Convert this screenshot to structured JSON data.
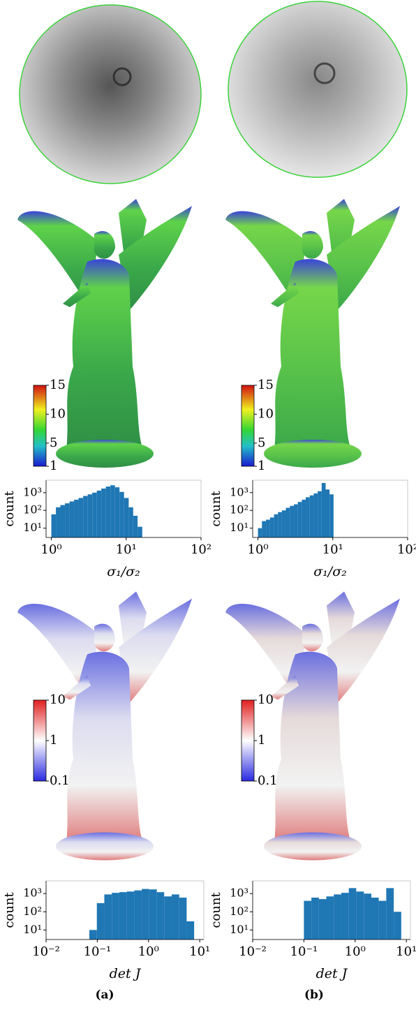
{
  "panels": [
    {
      "label": "(a)"
    },
    {
      "label": "(b)"
    }
  ],
  "colorbars": [
    {
      "lim": [
        1,
        15
      ],
      "log": false,
      "ticks": [
        1,
        5,
        10,
        15
      ]
    },
    {
      "lim": [
        1,
        15
      ],
      "log": false,
      "ticks": [
        1,
        5,
        10,
        15
      ]
    },
    {
      "lim": [
        0.1,
        10
      ],
      "log": true,
      "ticks": [
        0.1,
        1,
        10
      ]
    },
    {
      "lim": [
        0.1,
        10
      ],
      "log": true,
      "ticks": [
        0.1,
        1,
        10
      ]
    }
  ],
  "chart_data": [
    {
      "type": "histogram",
      "color": "#1f77b4",
      "log_x": true,
      "log_y": true,
      "bins": [
        1,
        1.15,
        1.32,
        1.52,
        1.75,
        2.01,
        2.31,
        2.66,
        3.06,
        3.52,
        4.05,
        4.65,
        5.35,
        6.15,
        7.08,
        8.14,
        9.36,
        10.8,
        12.4,
        14.2,
        16.4
      ],
      "counts": [
        60,
        150,
        200,
        250,
        320,
        400,
        500,
        650,
        800,
        1000,
        1300,
        1700,
        2200,
        2600,
        2000,
        1100,
        500,
        150,
        50,
        12
      ],
      "xlim": [
        0.85,
        100
      ],
      "ylim": [
        3,
        5000
      ],
      "xticks": [
        {
          "value": 1,
          "label": "10⁰"
        },
        {
          "value": 10,
          "label": "10¹"
        },
        {
          "value": 100,
          "label": "10²"
        }
      ],
      "yticks": [
        {
          "value": 10,
          "label": "10¹"
        },
        {
          "value": 100,
          "label": "10²"
        },
        {
          "value": 1000,
          "label": "10³"
        }
      ],
      "xlabel": "σ₁/σ₂",
      "ylabel": "count"
    },
    {
      "type": "histogram",
      "color": "#1f77b4",
      "log_x": true,
      "log_y": true,
      "bins": [
        1,
        1.13,
        1.28,
        1.45,
        1.64,
        1.85,
        2.09,
        2.36,
        2.67,
        3.02,
        3.41,
        3.85,
        4.35,
        4.92,
        5.56,
        6.28,
        7.1,
        8.02,
        9.06,
        10.24
      ],
      "counts": [
        10,
        25,
        30,
        40,
        60,
        80,
        100,
        140,
        180,
        220,
        300,
        400,
        550,
        700,
        900,
        1200,
        3500,
        1500,
        800
      ],
      "xlim": [
        0.85,
        100
      ],
      "ylim": [
        3,
        5000
      ],
      "xticks": [
        {
          "value": 1,
          "label": "10⁰"
        },
        {
          "value": 10,
          "label": "10¹"
        },
        {
          "value": 100,
          "label": "10²"
        }
      ],
      "yticks": [
        {
          "value": 10,
          "label": "10¹"
        },
        {
          "value": 100,
          "label": "10²"
        },
        {
          "value": 1000,
          "label": "10³"
        }
      ],
      "xlabel": "σ₁/σ₂",
      "ylabel": "count"
    },
    {
      "type": "histogram",
      "color": "#1f77b4",
      "log_x": true,
      "log_y": true,
      "bins": [
        0.07,
        0.098,
        0.137,
        0.192,
        0.269,
        0.376,
        0.527,
        0.738,
        1.03,
        1.45,
        2.02,
        2.83,
        3.97,
        5.55,
        7.77
      ],
      "counts": [
        10,
        300,
        900,
        1100,
        1200,
        1300,
        1500,
        1800,
        1700,
        1200,
        700,
        900,
        600,
        30
      ],
      "xlim": [
        0.01,
        12
      ],
      "ylim": [
        3,
        5000
      ],
      "xticks": [
        {
          "value": 0.01,
          "label": "10⁻²"
        },
        {
          "value": 0.1,
          "label": "10⁻¹"
        },
        {
          "value": 1,
          "label": "10⁰"
        },
        {
          "value": 10,
          "label": "10¹"
        }
      ],
      "yticks": [
        {
          "value": 10,
          "label": "10¹"
        },
        {
          "value": 100,
          "label": "10²"
        },
        {
          "value": 1000,
          "label": "10³"
        }
      ],
      "xlabel": "det J",
      "ylabel": "count"
    },
    {
      "type": "histogram",
      "color": "#1f77b4",
      "log_x": true,
      "log_y": true,
      "bins": [
        0.1,
        0.14,
        0.196,
        0.274,
        0.384,
        0.538,
        0.753,
        1.05,
        1.48,
        2.07,
        2.89,
        4.05,
        5.67,
        7.94
      ],
      "counts": [
        400,
        600,
        500,
        700,
        900,
        1100,
        2000,
        1300,
        1000,
        600,
        400,
        2000,
        100
      ],
      "xlim": [
        0.01,
        12
      ],
      "ylim": [
        3,
        5000
      ],
      "xticks": [
        {
          "value": 0.01,
          "label": "10⁻²"
        },
        {
          "value": 0.1,
          "label": "10⁻¹"
        },
        {
          "value": 1,
          "label": "10⁰"
        },
        {
          "value": 10,
          "label": "10¹"
        }
      ],
      "yticks": [
        {
          "value": 10,
          "label": "10¹"
        },
        {
          "value": 100,
          "label": "10²"
        },
        {
          "value": 1000,
          "label": "10³"
        }
      ],
      "xlabel": "det J",
      "ylabel": "count"
    }
  ]
}
